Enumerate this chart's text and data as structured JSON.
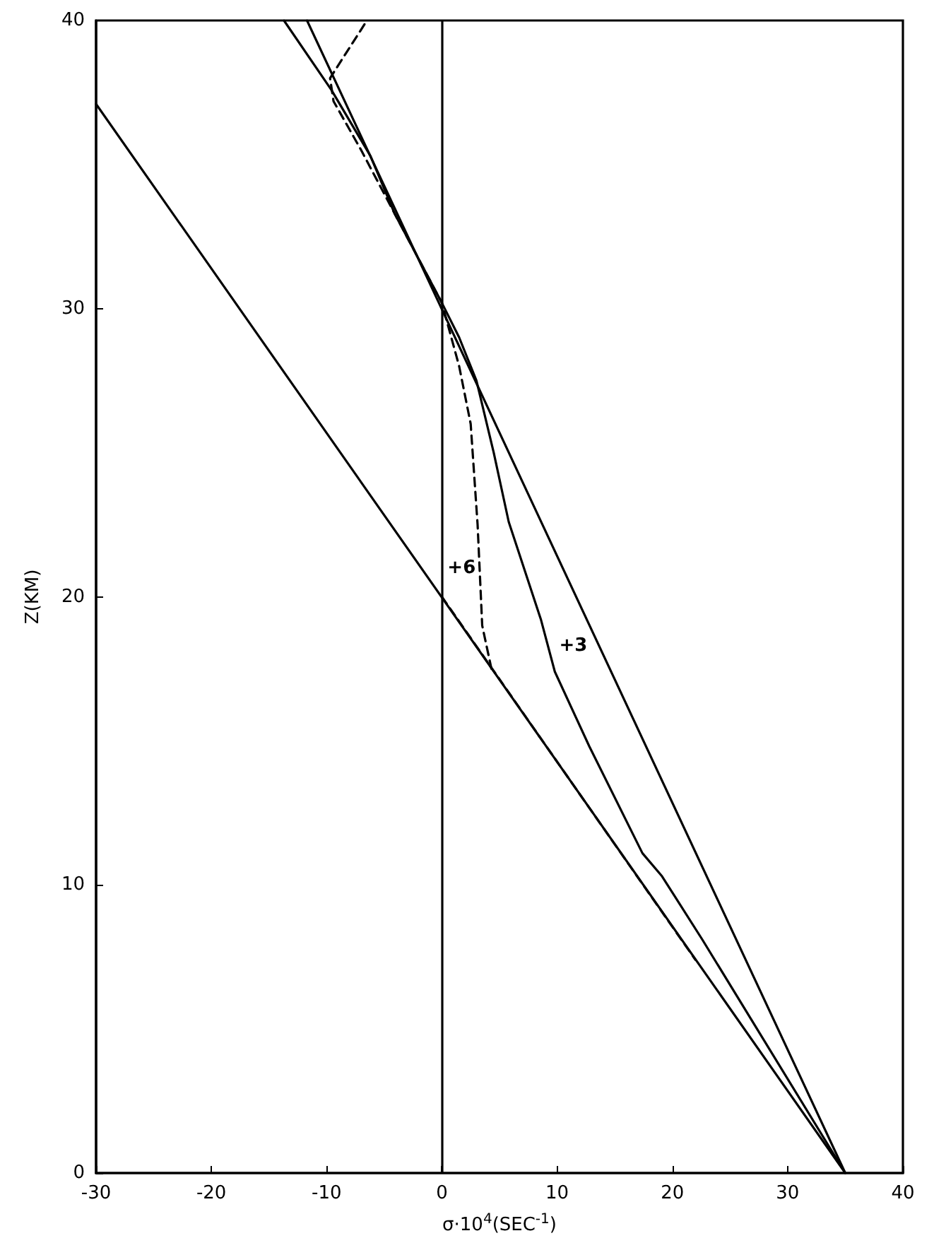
{
  "chart_data": {
    "type": "line",
    "xlabel": "σ·10$^{4}$(SEC$^{-1}$)",
    "ylabel": "Z(KM)",
    "xlim": [
      -30,
      40
    ],
    "ylim": [
      0,
      40
    ],
    "xticks": [
      -30,
      -20,
      -10,
      0,
      10,
      20,
      30,
      40
    ],
    "yticks": [
      0,
      10,
      20,
      30,
      40
    ],
    "grid": false,
    "marker": "none",
    "series": [
      {
        "color": "#000000",
        "line_style": "solid",
        "x": [
          35,
          -30
        ],
        "values": [
          0,
          37.1
        ]
      },
      {
        "color": "#000000",
        "line_style": "solid",
        "x": [
          35,
          -11.7
        ],
        "values": [
          0,
          40
        ]
      },
      {
        "color": "#000000",
        "line_style": "dashed",
        "x": [
          0,
          22
        ],
        "values": [
          20,
          7.4
        ]
      },
      {
        "color": "#000000",
        "line_style": "solid",
        "x": [
          35,
          22.6,
          19.1,
          17.4,
          12.8,
          9.8,
          8.6,
          5.8,
          4.5,
          3,
          1.5,
          0,
          -4.1,
          -6.2,
          -9.6,
          -13.7
        ],
        "values": [
          0,
          8.1,
          10.3,
          11.1,
          14.8,
          17.4,
          19.2,
          22.6,
          25,
          27.5,
          29,
          30.2,
          33.3,
          35.3,
          37.6,
          40
        ]
      },
      {
        "color": "#000000",
        "line_style": "dashed",
        "x": [
          4.3,
          3.5,
          3.1,
          2.5,
          1.5,
          0,
          -4.1,
          -7,
          -9.4,
          -9.7,
          -6.5
        ],
        "values": [
          17.5,
          19,
          22.5,
          26,
          28,
          30.2,
          33.3,
          35.5,
          37.2,
          38,
          40
        ]
      }
    ],
    "ref_lines": [
      {
        "axis": "x",
        "value": 0,
        "color": "#000000",
        "line_style": "solid"
      }
    ],
    "annotations": [
      {
        "text": "+6",
        "x": 3.3,
        "y": 21
      },
      {
        "text": "+3",
        "x": 9.2,
        "y": 18.3
      }
    ]
  }
}
